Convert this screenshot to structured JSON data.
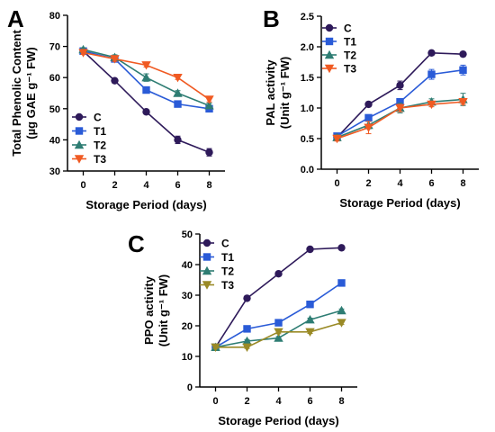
{
  "colors": {
    "C": "#2e1a5a",
    "T1": "#2a5bd7",
    "T2": "#2e7d73",
    "T3": "#f05a22",
    "T3_ppo": "#9a8a26"
  },
  "chart_data": [
    {
      "panel": "A",
      "type": "line",
      "xlabel": "Storage Period (days)",
      "ylabel_lines": [
        "Total Phenolic Content",
        "(µg GAE g⁻¹ FW)"
      ],
      "x": [
        0,
        2,
        4,
        6,
        8
      ],
      "xlim": [
        -1,
        9
      ],
      "ylim": [
        30,
        80
      ],
      "yticks": [
        30,
        40,
        50,
        60,
        70,
        80
      ],
      "legend_position": "bottom-left",
      "series": [
        {
          "name": "C",
          "marker": "circle",
          "color_key": "C",
          "values": [
            68.5,
            59,
            49,
            40,
            36
          ],
          "errors": [
            0.6,
            0.6,
            0.5,
            1.2,
            1.2
          ]
        },
        {
          "name": "T1",
          "marker": "square",
          "color_key": "T1",
          "values": [
            68.5,
            66,
            56,
            51.5,
            50
          ],
          "errors": [
            0.6,
            0.8,
            1.0,
            0.8,
            0.8
          ]
        },
        {
          "name": "T2",
          "marker": "triangle",
          "color_key": "T2",
          "values": [
            69,
            66.5,
            60,
            55,
            51
          ],
          "errors": [
            0.6,
            0.8,
            1.2,
            0.8,
            0.8
          ]
        },
        {
          "name": "T3",
          "marker": "triangle-down",
          "color_key": "T3",
          "values": [
            68,
            66,
            64,
            60,
            53
          ],
          "errors": [
            0.6,
            0.8,
            0.6,
            0.6,
            0.8
          ]
        }
      ]
    },
    {
      "panel": "B",
      "type": "line",
      "xlabel": "Storage Period (days)",
      "ylabel_lines": [
        "PAL activity",
        "(Unit g⁻¹ FW)"
      ],
      "x": [
        0,
        2,
        4,
        6,
        8
      ],
      "xlim": [
        -1,
        9
      ],
      "ylim": [
        0,
        2.5
      ],
      "yticks": [
        0.0,
        0.5,
        1.0,
        1.5,
        2.0,
        2.5
      ],
      "legend_position": "top-left",
      "series": [
        {
          "name": "C",
          "marker": "circle",
          "color_key": "C",
          "values": [
            0.52,
            1.06,
            1.37,
            1.9,
            1.88
          ],
          "errors": [
            0.03,
            0.04,
            0.07,
            0.02,
            0.02
          ]
        },
        {
          "name": "T1",
          "marker": "square",
          "color_key": "T1",
          "values": [
            0.54,
            0.84,
            1.1,
            1.55,
            1.62
          ],
          "errors": [
            0.04,
            0.04,
            0.05,
            0.08,
            0.08
          ]
        },
        {
          "name": "T2",
          "marker": "triangle",
          "color_key": "T2",
          "values": [
            0.52,
            0.72,
            1.0,
            1.1,
            1.14
          ],
          "errors": [
            0.04,
            0.06,
            0.08,
            0.05,
            0.1
          ]
        },
        {
          "name": "T3",
          "marker": "triangle-down",
          "color_key": "T3",
          "values": [
            0.5,
            0.68,
            1.0,
            1.06,
            1.1
          ],
          "errors": [
            0.04,
            0.1,
            0.06,
            0.04,
            0.04
          ]
        }
      ]
    },
    {
      "panel": "C",
      "type": "line",
      "xlabel": "Storage Period (days)",
      "ylabel_lines": [
        "PPO activity",
        "(Unit g⁻¹ FW)"
      ],
      "x": [
        0,
        2,
        4,
        6,
        8
      ],
      "xlim": [
        -1,
        9
      ],
      "ylim": [
        0,
        50
      ],
      "yticks": [
        0,
        10,
        20,
        30,
        40,
        50
      ],
      "legend_position": "top-left",
      "series": [
        {
          "name": "C",
          "marker": "circle",
          "color_key": "C",
          "values": [
            13,
            29,
            37,
            45,
            45.5
          ],
          "errors": [
            0.4,
            0.6,
            0.6,
            0.4,
            0.4
          ]
        },
        {
          "name": "T1",
          "marker": "square",
          "color_key": "T1",
          "values": [
            13,
            19,
            21,
            27,
            34
          ],
          "errors": [
            0.4,
            0.5,
            0.5,
            0.5,
            0.5
          ]
        },
        {
          "name": "T2",
          "marker": "triangle",
          "color_key": "T2",
          "values": [
            13,
            15,
            16,
            22,
            25
          ],
          "errors": [
            0.4,
            0.5,
            0.5,
            0.5,
            0.5
          ]
        },
        {
          "name": "T3",
          "marker": "triangle-down",
          "color_key": "T3_ppo",
          "values": [
            13,
            13,
            18,
            18,
            21
          ],
          "errors": [
            0.4,
            0.4,
            0.6,
            0.5,
            0.6
          ]
        }
      ]
    }
  ]
}
